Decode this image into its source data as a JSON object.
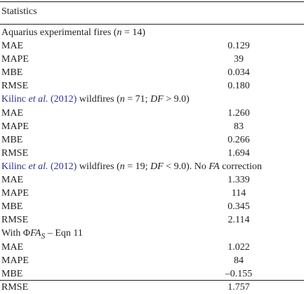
{
  "header": {
    "title": "Statistics"
  },
  "sections": [
    {
      "heading_text": "Aquarius experimental fires (",
      "heading_n": "n",
      "heading_rest": " = 14)",
      "rows": [
        {
          "label": "MAE",
          "value": "0.129"
        },
        {
          "label": "MAPE",
          "value": "39"
        },
        {
          "label": "MBE",
          "value": "0.034"
        },
        {
          "label": "RMSE",
          "value": "0.180"
        }
      ]
    },
    {
      "cite_author": "Kilinc ",
      "cite_etal": "et al.",
      "cite_year": " (2012)",
      "heading_mid": " wildfires (",
      "heading_n": "n",
      "heading_rest1": " = 71; ",
      "heading_df": "DF",
      "heading_rest2": " > 9.0)",
      "rows": [
        {
          "label": "MAE",
          "value": "1.260"
        },
        {
          "label": "MAPE",
          "value": "83"
        },
        {
          "label": "MBE",
          "value": "0.266"
        },
        {
          "label": "RMSE",
          "value": "1.694"
        }
      ]
    },
    {
      "cite_author": "Kilinc ",
      "cite_etal": "et al.",
      "cite_year": " (2012)",
      "heading_mid": " wildfires (",
      "heading_n": "n",
      "heading_rest1": " = 19; ",
      "heading_df": "DF",
      "heading_rest2": " < 9.0). No ",
      "heading_fa": "FA",
      "heading_rest3": " correction",
      "rows": [
        {
          "label": "MAE",
          "value": "1.339"
        },
        {
          "label": "MAPE",
          "value": "114"
        },
        {
          "label": "MBE",
          "value": "0.345"
        },
        {
          "label": "RMSE",
          "value": "2.114"
        }
      ]
    },
    {
      "heading_with": "With Φ",
      "heading_fa": "FA",
      "heading_sub": "S",
      "heading_eqn": " – Eqn 11",
      "rows": [
        {
          "label": "MAE",
          "value": "1.022"
        },
        {
          "label": "MAPE",
          "value": "84"
        },
        {
          "label": "MBE",
          "value": "–0.155"
        },
        {
          "label": "RMSE",
          "value": "1.757"
        }
      ]
    }
  ]
}
